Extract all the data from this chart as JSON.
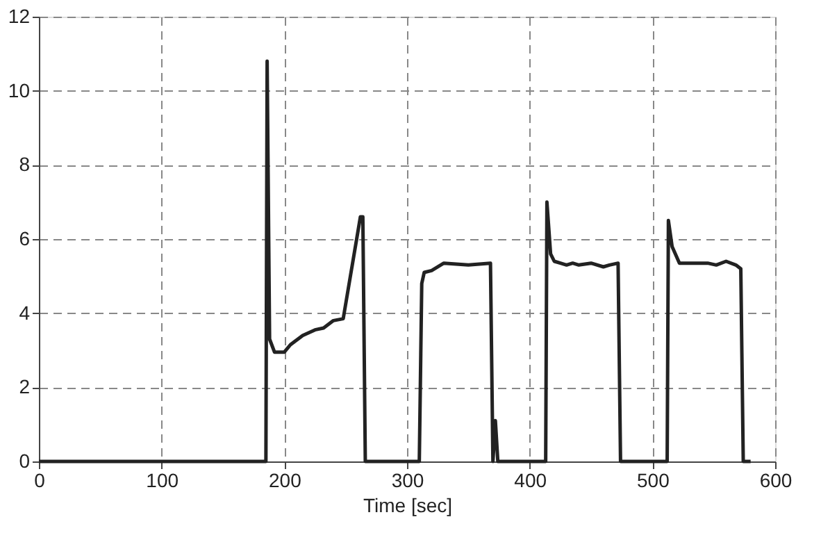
{
  "chart_data": {
    "type": "line",
    "xlabel": "Time [sec]",
    "x": [
      0,
      185,
      186,
      188,
      192,
      200,
      205,
      215,
      225,
      232,
      240,
      248,
      262,
      264,
      266,
      310,
      312,
      314,
      320,
      330,
      350,
      368,
      370,
      372,
      374,
      413,
      414,
      417,
      420,
      425,
      430,
      435,
      440,
      450,
      460,
      465,
      472,
      474,
      512,
      513,
      516,
      522,
      545,
      552,
      560,
      568,
      572,
      574,
      580
    ],
    "series": [
      {
        "color": "#222222",
        "values": [
          0,
          0,
          10.8,
          3.3,
          2.95,
          2.95,
          3.15,
          3.4,
          3.55,
          3.6,
          3.8,
          3.85,
          6.6,
          6.6,
          0,
          0,
          4.8,
          5.1,
          5.15,
          5.35,
          5.3,
          5.35,
          0,
          1.1,
          0,
          0,
          7.0,
          5.6,
          5.4,
          5.35,
          5.3,
          5.35,
          5.3,
          5.35,
          5.25,
          5.3,
          5.35,
          0,
          0,
          6.5,
          5.8,
          5.35,
          5.35,
          5.3,
          5.4,
          5.3,
          5.2,
          0,
          0
        ]
      }
    ],
    "xlim": [
      0,
      600
    ],
    "xticks": [
      0,
      100,
      200,
      300,
      400,
      500,
      600
    ],
    "ylim": [
      0,
      12
    ],
    "yticks": [
      0,
      2,
      4,
      6,
      8,
      10,
      12
    ],
    "grid": true,
    "line_style": "solid",
    "marker": "none"
  }
}
